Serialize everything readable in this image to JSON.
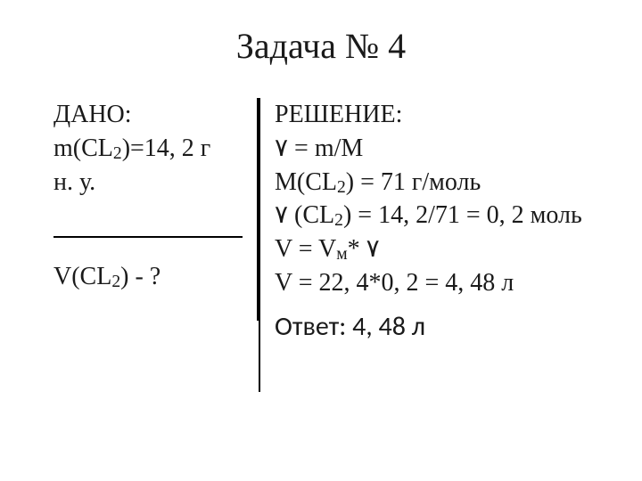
{
  "title": {
    "text": "Задача № 4",
    "fontsize": 40,
    "color": "#1a1a1a"
  },
  "given": {
    "header": "ДАНО:",
    "line2_pre": "m(CL",
    "line2_sub": "2",
    "line2_post": ")=14, 2 г",
    "line3": "н. у.",
    "fontsize": 28
  },
  "find": {
    "pre": "V(CL",
    "sub": "2",
    "post": ") - ?",
    "fontsize": 28
  },
  "solution": {
    "header": "РЕШЕНИE:",
    "line2": "٧ = m/M",
    "line3_pre": "M(CL",
    "line3_sub": "2",
    "line3_post": ") = 71 г/моль",
    "line4_pre": "٧ (CL",
    "line4_sub": "2",
    "line4_post": ") = 14, 2/71 = 0, 2 моль",
    "line5_pre": "V = V",
    "line5_sub": "м",
    "line5_post": "* ٧",
    "line6": "V = 22, 4*0, 2 = 4, 48 л",
    "fontsize": 28
  },
  "answer": {
    "text": "Ответ: 4, 48 л",
    "fontsize": 30
  },
  "layout": {
    "line_color": "#000000"
  }
}
